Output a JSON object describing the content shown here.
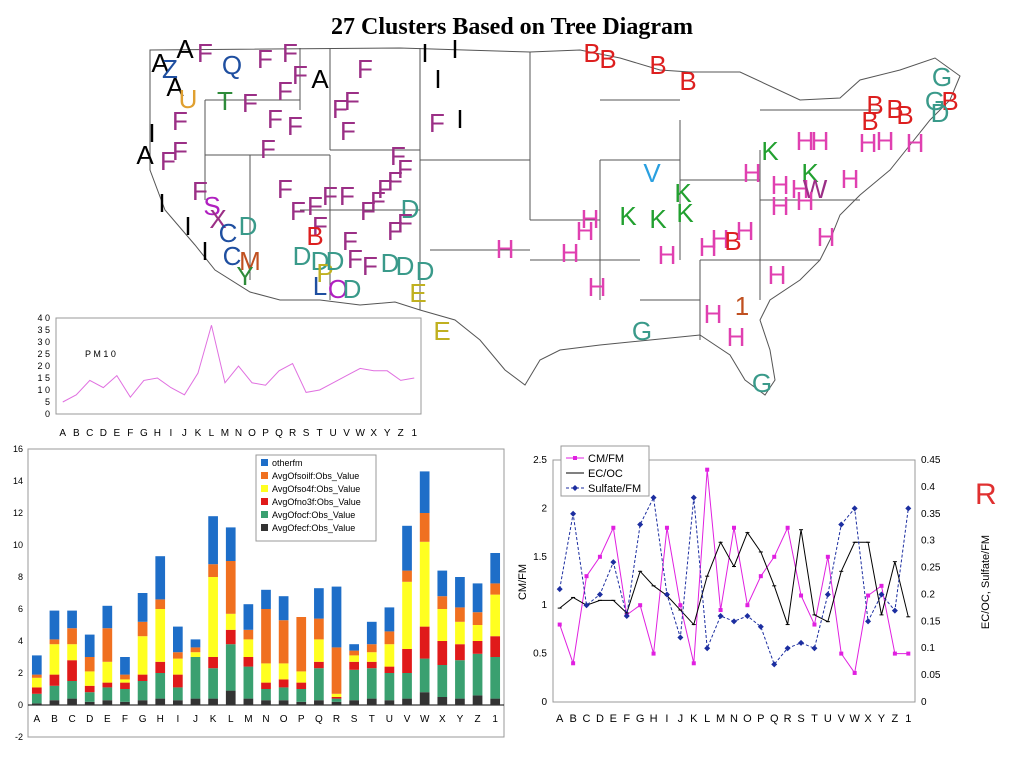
{
  "title": "27 Clusters Based on Tree Diagram",
  "standalone_label": "R",
  "map": {
    "cluster_colors": {
      "A": "#000000",
      "F": "#9b2f86",
      "Q": "#1f4fa0",
      "T": "#2e8b3a",
      "U": "#e0a030",
      "I": "#000000",
      "B": "#dd1f1f",
      "G": "#3a9a8a",
      "H": "#e040b0",
      "K": "#22a030",
      "V": "#2aa0e0",
      "W": "#9b2f86",
      "D": "#3a9a8a",
      "E": "#c0b020",
      "S": "#b020c0",
      "C": "#1f4fa0",
      "M": "#c05020",
      "Y": "#2e8b3a",
      "O": "#b020c0",
      "P": "#c0b020",
      "L": "#1f4fa0",
      "1": "#c05020",
      "X": "#9b2f86",
      "J": "#9b2f86",
      "N": "#2e8b3a",
      "Z": "#1f4fa0",
      "R": "#dd1f1f"
    },
    "labels": [
      {
        "t": "A",
        "x": 160,
        "y": 72
      },
      {
        "t": "A",
        "x": 185,
        "y": 58
      },
      {
        "t": "Z",
        "x": 170,
        "y": 78
      },
      {
        "t": "A",
        "x": 175,
        "y": 96
      },
      {
        "t": "U",
        "x": 188,
        "y": 108
      },
      {
        "t": "F",
        "x": 205,
        "y": 62
      },
      {
        "t": "Q",
        "x": 232,
        "y": 74
      },
      {
        "t": "F",
        "x": 265,
        "y": 68
      },
      {
        "t": "F",
        "x": 290,
        "y": 62
      },
      {
        "t": "F",
        "x": 300,
        "y": 84
      },
      {
        "t": "A",
        "x": 320,
        "y": 88
      },
      {
        "t": "F",
        "x": 365,
        "y": 78
      },
      {
        "t": "T",
        "x": 225,
        "y": 110
      },
      {
        "t": "F",
        "x": 250,
        "y": 112
      },
      {
        "t": "F",
        "x": 285,
        "y": 100
      },
      {
        "t": "F",
        "x": 275,
        "y": 128
      },
      {
        "t": "F",
        "x": 295,
        "y": 135
      },
      {
        "t": "F",
        "x": 340,
        "y": 118
      },
      {
        "t": "F",
        "x": 352,
        "y": 110
      },
      {
        "t": "F",
        "x": 348,
        "y": 140
      },
      {
        "t": "F",
        "x": 268,
        "y": 158
      },
      {
        "t": "I",
        "x": 425,
        "y": 62
      },
      {
        "t": "I",
        "x": 455,
        "y": 58
      },
      {
        "t": "I",
        "x": 438,
        "y": 88
      },
      {
        "t": "F",
        "x": 437,
        "y": 132
      },
      {
        "t": "I",
        "x": 460,
        "y": 128
      },
      {
        "t": "F",
        "x": 180,
        "y": 130
      },
      {
        "t": "I",
        "x": 152,
        "y": 142
      },
      {
        "t": "A",
        "x": 145,
        "y": 164
      },
      {
        "t": "F",
        "x": 168,
        "y": 170
      },
      {
        "t": "F",
        "x": 180,
        "y": 160
      },
      {
        "t": "F",
        "x": 200,
        "y": 200
      },
      {
        "t": "F",
        "x": 285,
        "y": 198
      },
      {
        "t": "F",
        "x": 298,
        "y": 220
      },
      {
        "t": "F",
        "x": 315,
        "y": 215
      },
      {
        "t": "F",
        "x": 330,
        "y": 205
      },
      {
        "t": "F",
        "x": 347,
        "y": 205
      },
      {
        "t": "F",
        "x": 368,
        "y": 220
      },
      {
        "t": "F",
        "x": 378,
        "y": 210
      },
      {
        "t": "F",
        "x": 395,
        "y": 190
      },
      {
        "t": "F",
        "x": 405,
        "y": 178
      },
      {
        "t": "F",
        "x": 398,
        "y": 165
      },
      {
        "t": "F",
        "x": 385,
        "y": 198
      },
      {
        "t": "D",
        "x": 410,
        "y": 218
      },
      {
        "t": "F",
        "x": 395,
        "y": 240
      },
      {
        "t": "F",
        "x": 405,
        "y": 232
      },
      {
        "t": "I",
        "x": 162,
        "y": 212
      },
      {
        "t": "S",
        "x": 212,
        "y": 215
      },
      {
        "t": "X",
        "x": 218,
        "y": 228
      },
      {
        "t": "I",
        "x": 188,
        "y": 235
      },
      {
        "t": "D",
        "x": 248,
        "y": 235
      },
      {
        "t": "C",
        "x": 228,
        "y": 242
      },
      {
        "t": "I",
        "x": 205,
        "y": 260
      },
      {
        "t": "C",
        "x": 232,
        "y": 265
      },
      {
        "t": "M",
        "x": 250,
        "y": 270
      },
      {
        "t": "Y",
        "x": 245,
        "y": 285
      },
      {
        "t": "F",
        "x": 320,
        "y": 235
      },
      {
        "t": "B",
        "x": 315,
        "y": 245
      },
      {
        "t": "F",
        "x": 350,
        "y": 250
      },
      {
        "t": "D",
        "x": 302,
        "y": 265
      },
      {
        "t": "D",
        "x": 320,
        "y": 270
      },
      {
        "t": "P",
        "x": 325,
        "y": 282
      },
      {
        "t": "D",
        "x": 335,
        "y": 270
      },
      {
        "t": "F",
        "x": 355,
        "y": 268
      },
      {
        "t": "D",
        "x": 390,
        "y": 272
      },
      {
        "t": "D",
        "x": 425,
        "y": 280
      },
      {
        "t": "F",
        "x": 370,
        "y": 275
      },
      {
        "t": "D",
        "x": 405,
        "y": 275
      },
      {
        "t": "L",
        "x": 320,
        "y": 295
      },
      {
        "t": "O",
        "x": 338,
        "y": 298
      },
      {
        "t": "D",
        "x": 352,
        "y": 298
      },
      {
        "t": "E",
        "x": 418,
        "y": 302
      },
      {
        "t": "E",
        "x": 442,
        "y": 340
      },
      {
        "t": "B",
        "x": 592,
        "y": 62
      },
      {
        "t": "B",
        "x": 608,
        "y": 68
      },
      {
        "t": "B",
        "x": 658,
        "y": 74
      },
      {
        "t": "B",
        "x": 688,
        "y": 90
      },
      {
        "t": "G",
        "x": 942,
        "y": 86
      },
      {
        "t": "G",
        "x": 935,
        "y": 110
      },
      {
        "t": "B",
        "x": 950,
        "y": 110
      },
      {
        "t": "B",
        "x": 875,
        "y": 114
      },
      {
        "t": "B",
        "x": 895,
        "y": 118
      },
      {
        "t": "B",
        "x": 870,
        "y": 130
      },
      {
        "t": "B",
        "x": 905,
        "y": 124
      },
      {
        "t": "D",
        "x": 940,
        "y": 122
      },
      {
        "t": "H",
        "x": 868,
        "y": 152
      },
      {
        "t": "H",
        "x": 885,
        "y": 150
      },
      {
        "t": "H",
        "x": 915,
        "y": 152
      },
      {
        "t": "H",
        "x": 805,
        "y": 150
      },
      {
        "t": "H",
        "x": 820,
        "y": 150
      },
      {
        "t": "K",
        "x": 770,
        "y": 160
      },
      {
        "t": "K",
        "x": 810,
        "y": 182
      },
      {
        "t": "V",
        "x": 652,
        "y": 182
      },
      {
        "t": "H",
        "x": 752,
        "y": 182
      },
      {
        "t": "H",
        "x": 780,
        "y": 194
      },
      {
        "t": "H",
        "x": 800,
        "y": 198
      },
      {
        "t": "W",
        "x": 815,
        "y": 198
      },
      {
        "t": "H",
        "x": 850,
        "y": 188
      },
      {
        "t": "H",
        "x": 780,
        "y": 215
      },
      {
        "t": "H",
        "x": 805,
        "y": 210
      },
      {
        "t": "K",
        "x": 683,
        "y": 202
      },
      {
        "t": "K",
        "x": 628,
        "y": 225
      },
      {
        "t": "K",
        "x": 658,
        "y": 228
      },
      {
        "t": "K",
        "x": 685,
        "y": 222
      },
      {
        "t": "H",
        "x": 590,
        "y": 228
      },
      {
        "t": "H",
        "x": 585,
        "y": 240
      },
      {
        "t": "H",
        "x": 505,
        "y": 258
      },
      {
        "t": "H",
        "x": 570,
        "y": 262
      },
      {
        "t": "H",
        "x": 667,
        "y": 264
      },
      {
        "t": "H",
        "x": 708,
        "y": 256
      },
      {
        "t": "H",
        "x": 720,
        "y": 248
      },
      {
        "t": "B",
        "x": 733,
        "y": 250
      },
      {
        "t": "H",
        "x": 745,
        "y": 240
      },
      {
        "t": "H",
        "x": 826,
        "y": 246
      },
      {
        "t": "H",
        "x": 597,
        "y": 296
      },
      {
        "t": "H",
        "x": 777,
        "y": 284
      },
      {
        "t": "1",
        "x": 742,
        "y": 315
      },
      {
        "t": "H",
        "x": 713,
        "y": 323
      },
      {
        "t": "G",
        "x": 642,
        "y": 340
      },
      {
        "t": "H",
        "x": 736,
        "y": 346
      },
      {
        "t": "G",
        "x": 762,
        "y": 392
      }
    ]
  },
  "pm_chart_data": {
    "type": "line",
    "annotation": "P M 1 0",
    "categories": [
      "A",
      "B",
      "C",
      "D",
      "E",
      "F",
      "G",
      "H",
      "I",
      "J",
      "K",
      "L",
      "M",
      "N",
      "O",
      "P",
      "Q",
      "R",
      "S",
      "T",
      "U",
      "V",
      "W",
      "X",
      "Y",
      "Z",
      "1"
    ],
    "values": [
      5,
      8,
      14,
      11,
      16,
      7,
      14,
      15,
      11,
      8,
      17,
      37,
      13,
      20,
      13,
      12,
      18,
      21,
      9,
      10,
      13,
      16,
      19,
      18,
      18,
      14,
      15
    ],
    "yticks": [
      "0",
      "5",
      "1 0",
      "1 5",
      "2 0",
      "2 5",
      "3 0",
      "3 5",
      "4 0"
    ],
    "ylim": [
      0,
      40
    ],
    "color": "#e070e0"
  },
  "chart_data": [
    {
      "type": "bar",
      "stacked": true,
      "categories": [
        "A",
        "B",
        "C",
        "D",
        "E",
        "F",
        "G",
        "H",
        "I",
        "J",
        "K",
        "L",
        "M",
        "N",
        "O",
        "P",
        "Q",
        "R",
        "S",
        "T",
        "U",
        "V",
        "W",
        "X",
        "Y",
        "Z",
        "1"
      ],
      "ylim": [
        -2,
        16
      ],
      "yticks": [
        "-2",
        "0",
        "2",
        "4",
        "6",
        "8",
        "10",
        "12",
        "14",
        "16"
      ],
      "legend_position": "top-right",
      "series": [
        {
          "name": "AvgOfecf:Obs_Value",
          "color": "#333333",
          "values": [
            0.1,
            0.3,
            0.4,
            0.2,
            0.3,
            0.2,
            0.3,
            0.4,
            0.3,
            0.4,
            0.4,
            0.9,
            0.4,
            0.3,
            0.3,
            0.2,
            0.3,
            0.2,
            0.3,
            0.4,
            0.3,
            0.4,
            0.8,
            0.5,
            0.4,
            0.6,
            0.4
          ]
        },
        {
          "name": "AvgOfocf:Obs_Value",
          "color": "#3aa070",
          "values": [
            0.6,
            0.9,
            1.1,
            0.6,
            0.8,
            0.8,
            1.2,
            1.6,
            0.8,
            2.6,
            1.9,
            2.9,
            2.0,
            0.7,
            0.8,
            0.8,
            2.0,
            0.2,
            1.9,
            1.9,
            1.7,
            1.6,
            2.1,
            2.0,
            2.4,
            2.6,
            2.6
          ]
        },
        {
          "name": "AvgOfno3f:Obs_Value",
          "color": "#e01a1a",
          "values": [
            0.4,
            0.7,
            1.3,
            0.4,
            0.3,
            0.4,
            0.4,
            0.7,
            0.8,
            0.0,
            0.7,
            0.9,
            0.6,
            0.4,
            0.5,
            0.4,
            0.4,
            0.1,
            0.5,
            0.4,
            0.4,
            1.5,
            2.0,
            1.5,
            1.0,
            0.8,
            1.3
          ]
        },
        {
          "name": "AvgOfso4f:Obs_Value",
          "color": "#ffff20",
          "values": [
            0.6,
            1.9,
            1.0,
            0.9,
            1.3,
            0.2,
            2.4,
            3.3,
            1.0,
            0.3,
            5.0,
            1.0,
            1.1,
            1.2,
            1.0,
            0.7,
            1.4,
            0.2,
            0.4,
            0.6,
            1.4,
            4.2,
            5.3,
            2.0,
            1.4,
            1.0,
            2.6
          ]
        },
        {
          "name": "AvgOfsoilf:Obs_Value",
          "color": "#f07020",
          "values": [
            0.2,
            0.3,
            1.0,
            0.9,
            2.1,
            0.3,
            0.9,
            0.6,
            0.4,
            0.3,
            0.8,
            3.3,
            0.6,
            3.4,
            2.7,
            3.4,
            1.3,
            2.9,
            0.3,
            0.5,
            0.8,
            0.7,
            1.8,
            0.8,
            0.9,
            0.8,
            0.7
          ]
        },
        {
          "name": "otherfm",
          "color": "#1e6ec8",
          "values": [
            1.2,
            1.8,
            1.1,
            1.4,
            1.4,
            1.1,
            1.8,
            2.7,
            1.6,
            0.5,
            3.0,
            2.1,
            1.6,
            1.2,
            1.5,
            0.0,
            1.9,
            3.8,
            0.4,
            1.4,
            1.5,
            2.8,
            2.6,
            1.6,
            1.9,
            1.8,
            1.9
          ]
        }
      ]
    },
    {
      "type": "line",
      "categories": [
        "A",
        "B",
        "C",
        "D",
        "E",
        "F",
        "G",
        "H",
        "I",
        "J",
        "K",
        "L",
        "M",
        "N",
        "O",
        "P",
        "Q",
        "R",
        "S",
        "T",
        "U",
        "V",
        "W",
        "X",
        "Y",
        "Z",
        "1"
      ],
      "ylabel": "CM/FM",
      "y2label": "EC/OC, Sulfate/FM",
      "ylim": [
        0,
        2.5
      ],
      "y2lim": [
        0,
        0.45
      ],
      "yticks": [
        "0",
        "0.5",
        "1",
        "1.5",
        "2",
        "2.5"
      ],
      "y2ticks": [
        "0",
        "0.05",
        "0.1",
        "0.15",
        "0.2",
        "0.25",
        "0.3",
        "0.35",
        "0.4",
        "0.45"
      ],
      "legend_position": "top-left",
      "series": [
        {
          "name": "CM/FM",
          "axis": "left",
          "color": "#e020e0",
          "style": "square",
          "values": [
            0.8,
            0.4,
            1.3,
            1.5,
            1.8,
            0.9,
            1.0,
            0.5,
            1.8,
            1.0,
            0.4,
            2.4,
            0.95,
            1.8,
            1.0,
            1.3,
            1.5,
            1.8,
            1.1,
            0.8,
            1.5,
            0.5,
            0.3,
            1.1,
            1.2,
            0.5,
            0.5
          ]
        },
        {
          "name": "EC/OC",
          "axis": "left",
          "color": "#000000",
          "style": "dash",
          "values": [
            0.97,
            1.08,
            1.0,
            1.05,
            1.05,
            0.92,
            1.35,
            1.2,
            1.1,
            0.95,
            0.8,
            1.3,
            1.65,
            1.4,
            1.75,
            1.55,
            1.2,
            0.8,
            1.78,
            0.9,
            0.83,
            1.35,
            1.65,
            1.65,
            0.9,
            1.45,
            0.88
          ]
        },
        {
          "name": "Sulfate/FM",
          "axis": "right",
          "color": "#1c2ea0",
          "style": "diamond",
          "values": [
            0.21,
            0.35,
            0.18,
            0.2,
            0.26,
            0.16,
            0.33,
            0.38,
            0.2,
            0.12,
            0.38,
            0.1,
            0.16,
            0.15,
            0.16,
            0.14,
            0.07,
            0.1,
            0.11,
            0.1,
            0.2,
            0.33,
            0.36,
            0.15,
            0.2,
            0.17,
            0.36
          ]
        }
      ]
    }
  ]
}
